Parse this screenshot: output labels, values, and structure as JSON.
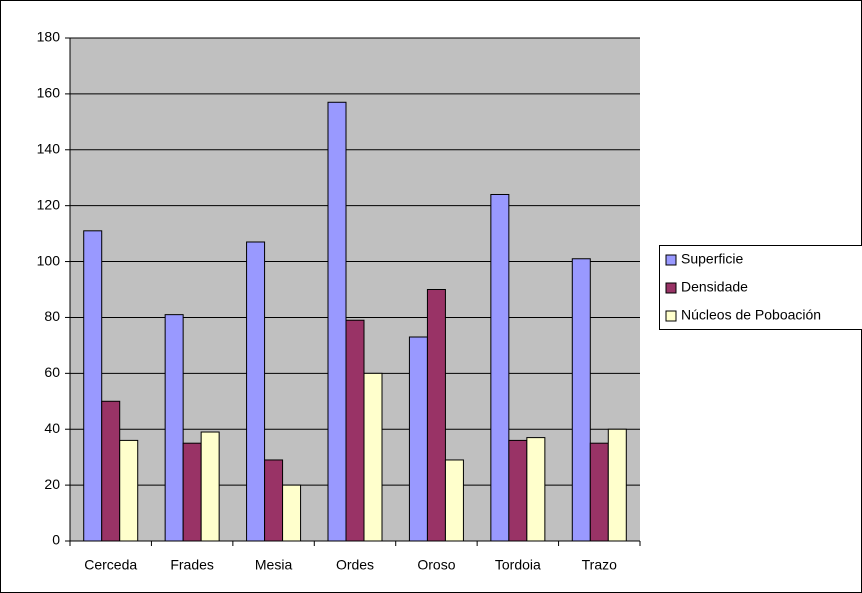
{
  "chart_data": {
    "type": "bar",
    "categories": [
      "Cerceda",
      "Frades",
      "Mesia",
      "Ordes",
      "Oroso",
      "Tordoia",
      "Trazo"
    ],
    "series": [
      {
        "name": "Superficie",
        "color": "#9999ff",
        "values": [
          111,
          81,
          107,
          157,
          73,
          124,
          101
        ]
      },
      {
        "name": "Densidade",
        "color": "#993366",
        "values": [
          50,
          35,
          29,
          79,
          90,
          36,
          35
        ]
      },
      {
        "name": "Núcleos de Poboación",
        "color": "#ffffcc",
        "values": [
          36,
          39,
          20,
          60,
          29,
          37,
          40
        ]
      }
    ],
    "ylim": [
      0,
      180
    ],
    "yticks": [
      0,
      20,
      40,
      60,
      80,
      100,
      120,
      140,
      160,
      180
    ],
    "grid": true,
    "legend": "right",
    "plot_background": "#c0c0c0"
  }
}
